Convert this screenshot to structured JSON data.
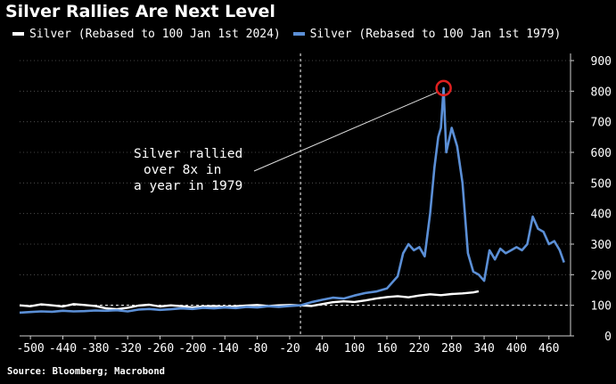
{
  "chart_data": {
    "type": "line",
    "title": "Silver Rallies Are Next Level",
    "source": "Source: Bloomberg; Macrobond",
    "xlabel": "",
    "ylabel": "",
    "xlim": [
      -520,
      500
    ],
    "ylim": [
      0,
      900
    ],
    "xticks": [
      -500,
      -440,
      -380,
      -320,
      -260,
      -200,
      -140,
      -80,
      -20,
      40,
      100,
      160,
      220,
      280,
      340,
      400,
      460
    ],
    "xtick_labels": [
      "-500",
      "-440",
      "-380",
      "-320",
      "-260",
      "-200",
      "-140",
      "-80",
      "-20",
      "40",
      "100",
      "160",
      "220",
      "280",
      "340",
      "400",
      "460"
    ],
    "yticks": [
      0,
      100,
      200,
      300,
      400,
      500,
      600,
      700,
      800,
      900
    ],
    "ytick_labels": [
      "0",
      "100",
      "200",
      "300",
      "400",
      "500",
      "600",
      "700",
      "800",
      "900"
    ],
    "grid": true,
    "reference_line_y": 100,
    "vertical_marker_x": 0,
    "annotation": {
      "text_lines": [
        "Silver rallied",
        "over 8x in",
        "a year in 1979"
      ],
      "point": [
        265,
        810
      ]
    },
    "series": [
      {
        "name": "Silver (Rebased to 100 Jan 1st 2024)",
        "color": "#ffffff",
        "points": [
          [
            -520,
            100
          ],
          [
            -500,
            97
          ],
          [
            -480,
            103
          ],
          [
            -460,
            100
          ],
          [
            -440,
            96
          ],
          [
            -420,
            104
          ],
          [
            -400,
            101
          ],
          [
            -380,
            98
          ],
          [
            -360,
            90
          ],
          [
            -340,
            87
          ],
          [
            -320,
            92
          ],
          [
            -300,
            99
          ],
          [
            -280,
            102
          ],
          [
            -260,
            96
          ],
          [
            -240,
            100
          ],
          [
            -220,
            97
          ],
          [
            -200,
            93
          ],
          [
            -180,
            96
          ],
          [
            -160,
            98
          ],
          [
            -140,
            95
          ],
          [
            -120,
            97
          ],
          [
            -100,
            99
          ],
          [
            -80,
            101
          ],
          [
            -60,
            98
          ],
          [
            -40,
            100
          ],
          [
            -20,
            101
          ],
          [
            0,
            100
          ],
          [
            20,
            98
          ],
          [
            40,
            104
          ],
          [
            60,
            110
          ],
          [
            80,
            113
          ],
          [
            100,
            111
          ],
          [
            120,
            116
          ],
          [
            140,
            122
          ],
          [
            160,
            127
          ],
          [
            180,
            130
          ],
          [
            200,
            126
          ],
          [
            220,
            132
          ],
          [
            240,
            136
          ],
          [
            260,
            133
          ],
          [
            280,
            137
          ],
          [
            300,
            139
          ],
          [
            320,
            142
          ],
          [
            330,
            146
          ]
        ]
      },
      {
        "name": "Silver (Rebased to 100 Jan 1st 1979)",
        "color": "#5b8fd6",
        "points": [
          [
            -520,
            76
          ],
          [
            -500,
            78
          ],
          [
            -480,
            80
          ],
          [
            -460,
            79
          ],
          [
            -440,
            82
          ],
          [
            -420,
            80
          ],
          [
            -400,
            81
          ],
          [
            -380,
            83
          ],
          [
            -360,
            82
          ],
          [
            -340,
            84
          ],
          [
            -320,
            80
          ],
          [
            -300,
            86
          ],
          [
            -280,
            88
          ],
          [
            -260,
            85
          ],
          [
            -240,
            87
          ],
          [
            -220,
            90
          ],
          [
            -200,
            88
          ],
          [
            -180,
            92
          ],
          [
            -160,
            90
          ],
          [
            -140,
            93
          ],
          [
            -120,
            91
          ],
          [
            -100,
            95
          ],
          [
            -80,
            93
          ],
          [
            -60,
            97
          ],
          [
            -40,
            95
          ],
          [
            -20,
            98
          ],
          [
            0,
            100
          ],
          [
            20,
            110
          ],
          [
            40,
            118
          ],
          [
            60,
            125
          ],
          [
            80,
            122
          ],
          [
            100,
            132
          ],
          [
            120,
            140
          ],
          [
            140,
            145
          ],
          [
            160,
            155
          ],
          [
            180,
            195
          ],
          [
            190,
            270
          ],
          [
            200,
            300
          ],
          [
            210,
            280
          ],
          [
            220,
            290
          ],
          [
            230,
            260
          ],
          [
            240,
            400
          ],
          [
            248,
            550
          ],
          [
            255,
            650
          ],
          [
            260,
            680
          ],
          [
            265,
            810
          ],
          [
            270,
            600
          ],
          [
            280,
            680
          ],
          [
            290,
            620
          ],
          [
            300,
            500
          ],
          [
            310,
            270
          ],
          [
            320,
            210
          ],
          [
            330,
            200
          ],
          [
            340,
            180
          ],
          [
            350,
            280
          ],
          [
            360,
            250
          ],
          [
            370,
            285
          ],
          [
            380,
            270
          ],
          [
            390,
            280
          ],
          [
            400,
            290
          ],
          [
            410,
            280
          ],
          [
            420,
            300
          ],
          [
            430,
            390
          ],
          [
            440,
            350
          ],
          [
            450,
            340
          ],
          [
            460,
            300
          ],
          [
            470,
            310
          ],
          [
            480,
            280
          ],
          [
            488,
            240
          ]
        ]
      }
    ]
  }
}
